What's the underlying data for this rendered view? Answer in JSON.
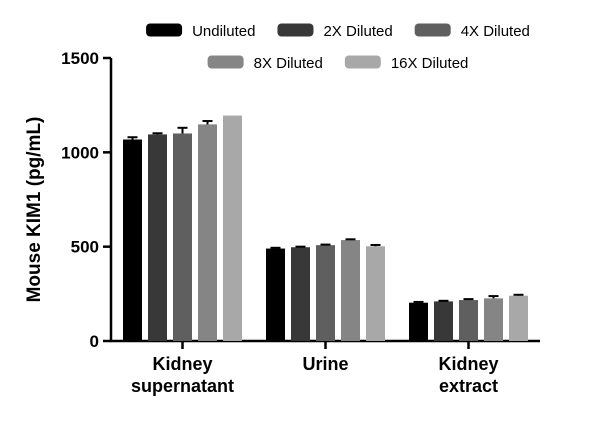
{
  "chart_data": {
    "type": "bar",
    "title": "",
    "xlabel": "",
    "ylabel": "Mouse KIM1 (pg/mL)",
    "ylim": [
      0,
      1500
    ],
    "yticks": [
      0,
      500,
      1000,
      1500
    ],
    "categories": [
      [
        "Kidney",
        "supernatant"
      ],
      [
        "Urine"
      ],
      [
        "Kidney",
        "extract"
      ]
    ],
    "legend_position": "top",
    "series": [
      {
        "name": "Undiluted",
        "color": "#000000",
        "values": [
          1068,
          490,
          203
        ],
        "errors": [
          12,
          4,
          4
        ]
      },
      {
        "name": "2X Diluted",
        "color": "#383838",
        "values": [
          1095,
          497,
          210
        ],
        "errors": [
          6,
          3,
          3
        ]
      },
      {
        "name": "4X Diluted",
        "color": "#5f5f5f",
        "values": [
          1100,
          508,
          217
        ],
        "errors": [
          30,
          3,
          5
        ]
      },
      {
        "name": "8X Diluted",
        "color": "#858585",
        "values": [
          1148,
          535,
          226
        ],
        "errors": [
          18,
          4,
          12
        ]
      },
      {
        "name": "16X Diluted",
        "color": "#a8a8a8",
        "values": [
          1195,
          502,
          240
        ],
        "errors": [
          0,
          7,
          5
        ]
      }
    ]
  }
}
